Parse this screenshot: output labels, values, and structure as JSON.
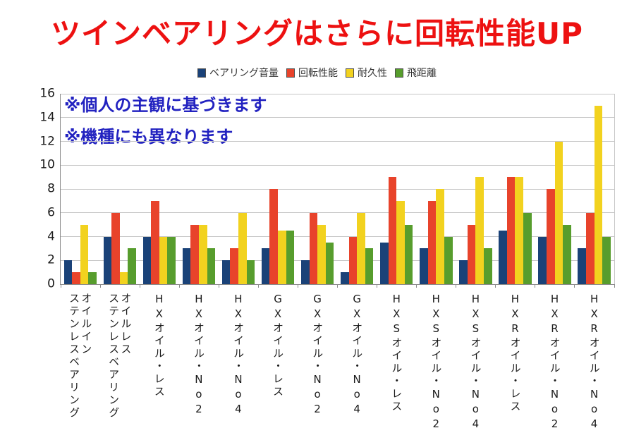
{
  "title": {
    "text": "ツインベアリングはさらに回転性能UP",
    "color": "#ed1111"
  },
  "annotations": {
    "line1": "※個人の主観に基づきます",
    "line2": "※機種にも異なります",
    "color": "#2222c0"
  },
  "chart_data": {
    "type": "bar",
    "title": "ツインベアリングはさらに回転性能UP",
    "categories": [
      "オイルイン\nステンレスベアリング",
      "オイルレス\nステンレスベアリング",
      "HXオイル・レス",
      "HXオイル・No2",
      "HXオイル・No4",
      "GXオイル・レス",
      "GXオイル・No2",
      "GXオイル・No4",
      "HXSオイル・レス",
      "HXSオイル・No2",
      "HXSオイル・No4",
      "HXRオイル・レス",
      "HXRオイル・No2",
      "HXRオイル・No4"
    ],
    "series": [
      {
        "name": "ベアリング音量",
        "color": "#1a4278",
        "values": [
          2,
          4,
          4,
          3,
          2,
          3,
          2,
          1,
          3.5,
          3,
          2,
          4.5,
          4,
          3
        ]
      },
      {
        "name": "回転性能",
        "color": "#e8432b",
        "values": [
          1,
          6,
          7,
          5,
          3,
          8,
          6,
          4,
          9,
          7,
          5,
          9,
          8,
          6
        ]
      },
      {
        "name": "耐久性",
        "color": "#f2d21f",
        "values": [
          5,
          1,
          4,
          5,
          6,
          4.5,
          5,
          6,
          7,
          8,
          9,
          9,
          12,
          15
        ]
      },
      {
        "name": "飛距離",
        "color": "#579d2d",
        "values": [
          1,
          3,
          4,
          3,
          2,
          4.5,
          3.5,
          3,
          5,
          4,
          3,
          6,
          5,
          4
        ]
      }
    ],
    "xlabel": "",
    "ylabel": "",
    "ylim": [
      0,
      16
    ],
    "ytick_step": 2,
    "grid": true,
    "legend_position": "top"
  }
}
